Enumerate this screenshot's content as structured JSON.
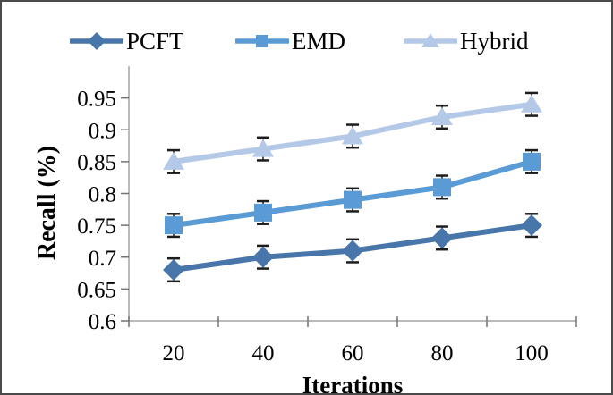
{
  "figure": {
    "border_color": "#4a4a4a",
    "background": "#ffffff"
  },
  "chart_data": {
    "type": "line",
    "title": "",
    "xlabel": "Iterations",
    "ylabel": "Recall (%)",
    "categories": [
      20,
      40,
      60,
      80,
      100
    ],
    "ylim": [
      0.6,
      1.0
    ],
    "yticks": [
      "0.6",
      "0.65",
      "0.7",
      "0.75",
      "0.8",
      "0.85",
      "0.9",
      "0.95"
    ],
    "grid": false,
    "legend_position": "top",
    "error_bar": 0.018,
    "axis_color": "#a6a6a6",
    "tick_color": "#737373",
    "error_color": "#1c1c1c",
    "series": [
      {
        "name": "PCFT",
        "marker": "diamond",
        "color": "#4876aa",
        "values": [
          0.68,
          0.7,
          0.71,
          0.73,
          0.75
        ]
      },
      {
        "name": "EMD",
        "marker": "square",
        "color": "#5b9bd5",
        "values": [
          0.75,
          0.77,
          0.79,
          0.81,
          0.85
        ]
      },
      {
        "name": "Hybrid",
        "marker": "triangle",
        "color": "#b4c9e7",
        "values": [
          0.85,
          0.87,
          0.89,
          0.92,
          0.94
        ]
      }
    ]
  }
}
